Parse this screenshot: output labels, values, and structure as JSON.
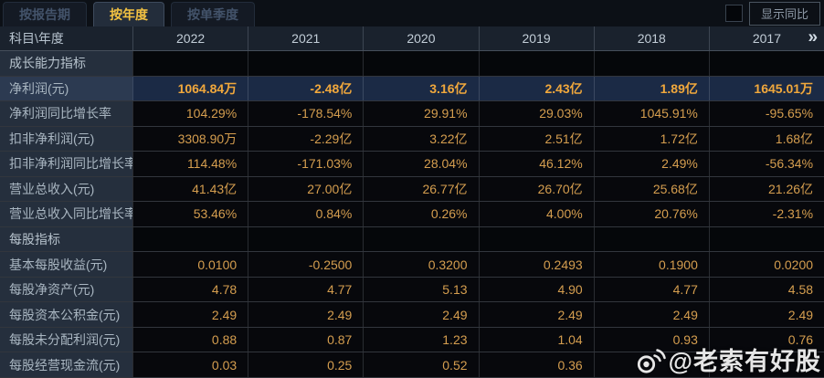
{
  "tabs": [
    {
      "label": "按报告期",
      "selected": false
    },
    {
      "label": "按年度",
      "selected": true
    },
    {
      "label": "按单季度",
      "selected": false
    }
  ],
  "controls": {
    "show_yoy_label": "显示同比",
    "checkbox_checked": false
  },
  "table": {
    "corner_header": "科目\\年度",
    "columns": [
      "2022",
      "2021",
      "2020",
      "2019",
      "2018",
      "2017"
    ],
    "more_icon": "»",
    "rows": [
      {
        "type": "section",
        "label": "成长能力指标",
        "values": [
          "",
          "",
          "",
          "",
          "",
          ""
        ]
      },
      {
        "type": "data",
        "highlight": true,
        "label": "净利润(元)",
        "values": [
          "1064.84万",
          "-2.48亿",
          "3.16亿",
          "2.43亿",
          "1.89亿",
          "1645.01万"
        ]
      },
      {
        "type": "data",
        "highlight": false,
        "label": "净利润同比增长率",
        "values": [
          "104.29%",
          "-178.54%",
          "29.91%",
          "29.03%",
          "1045.91%",
          "-95.65%"
        ]
      },
      {
        "type": "data",
        "highlight": false,
        "label": "扣非净利润(元)",
        "values": [
          "3308.90万",
          "-2.29亿",
          "3.22亿",
          "2.51亿",
          "1.72亿",
          "1.68亿"
        ]
      },
      {
        "type": "data",
        "highlight": false,
        "label": "扣非净利润同比增长率",
        "values": [
          "114.48%",
          "-171.03%",
          "28.04%",
          "46.12%",
          "2.49%",
          "-56.34%"
        ]
      },
      {
        "type": "data",
        "highlight": false,
        "label": "营业总收入(元)",
        "values": [
          "41.43亿",
          "27.00亿",
          "26.77亿",
          "26.70亿",
          "25.68亿",
          "21.26亿"
        ]
      },
      {
        "type": "data",
        "highlight": false,
        "label": "营业总收入同比增长率",
        "values": [
          "53.46%",
          "0.84%",
          "0.26%",
          "4.00%",
          "20.76%",
          "-2.31%"
        ]
      },
      {
        "type": "section",
        "label": "每股指标",
        "values": [
          "",
          "",
          "",
          "",
          "",
          ""
        ]
      },
      {
        "type": "data",
        "highlight": false,
        "label": "基本每股收益(元)",
        "values": [
          "0.0100",
          "-0.2500",
          "0.3200",
          "0.2493",
          "0.1900",
          "0.0200"
        ]
      },
      {
        "type": "data",
        "highlight": false,
        "label": "每股净资产(元)",
        "values": [
          "4.78",
          "4.77",
          "5.13",
          "4.90",
          "4.77",
          "4.58"
        ]
      },
      {
        "type": "data",
        "highlight": false,
        "label": "每股资本公积金(元)",
        "values": [
          "2.49",
          "2.49",
          "2.49",
          "2.49",
          "2.49",
          "2.49"
        ]
      },
      {
        "type": "data",
        "highlight": false,
        "label": "每股未分配利润(元)",
        "values": [
          "0.88",
          "0.87",
          "1.23",
          "1.04",
          "0.93",
          "0.76"
        ]
      },
      {
        "type": "data",
        "highlight": false,
        "label": "每股经营现金流(元)",
        "values": [
          "0.03",
          "0.25",
          "0.52",
          "0.36",
          "",
          ""
        ]
      }
    ]
  },
  "watermark": {
    "text": "@老索有好股"
  },
  "colors": {
    "accent_yellow": "#f3c242",
    "value_orange": "#d59e4f",
    "highlight_row_bg": "#1b2a45",
    "header_bg": "#1a222d",
    "label_col_bg": "#252f3d"
  }
}
